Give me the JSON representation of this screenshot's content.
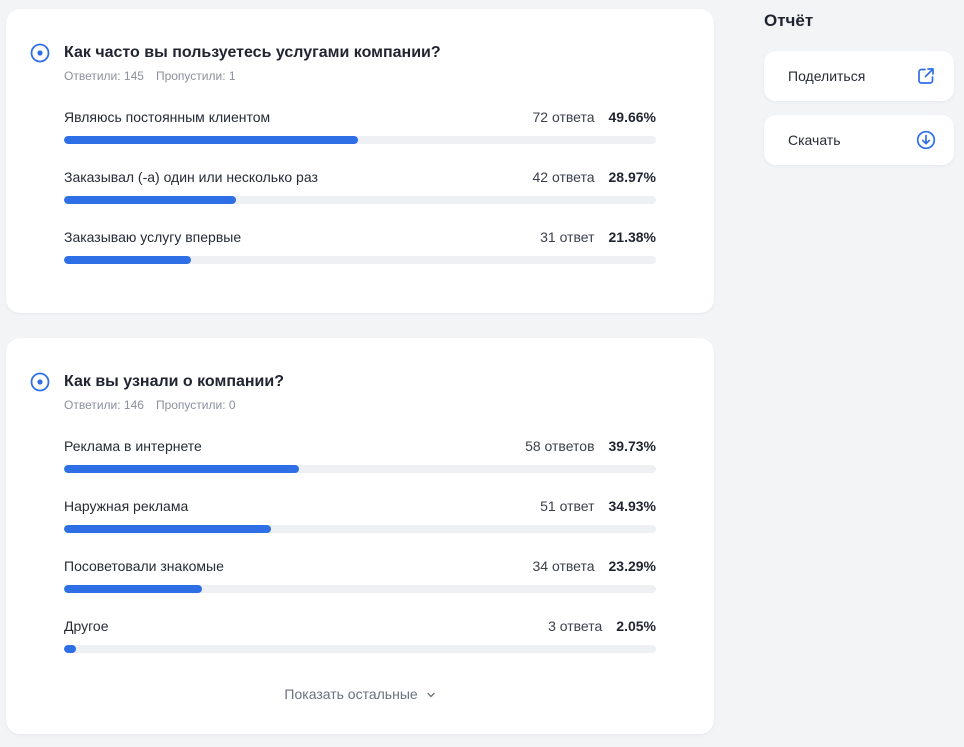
{
  "sidebar": {
    "title": "Отчёт",
    "share_label": "Поделиться",
    "download_label": "Скачать"
  },
  "colors": {
    "accent": "#2f6fe6",
    "track": "#eef0f4"
  },
  "questions": [
    {
      "title": "Как часто вы пользуетесь услугами компании?",
      "answered": "Ответили: 145",
      "skipped": "Пропустили: 1",
      "options": [
        {
          "label": "Являюсь постоянным клиентом",
          "count": "72 ответа",
          "percent": "49.66%",
          "fraction": 0.4966
        },
        {
          "label": "Заказывал (-а) один или несколько раз",
          "count": "42 ответа",
          "percent": "28.97%",
          "fraction": 0.2897
        },
        {
          "label": "Заказываю услугу впервые",
          "count": "31 ответ",
          "percent": "21.38%",
          "fraction": 0.2138
        }
      ]
    },
    {
      "title": "Как вы узнали о компании?",
      "answered": "Ответили: 146",
      "skipped": "Пропустили: 0",
      "options": [
        {
          "label": "Реклама в интернете",
          "count": "58 ответов",
          "percent": "39.73%",
          "fraction": 0.3973
        },
        {
          "label": "Наружная реклама",
          "count": "51 ответ",
          "percent": "34.93%",
          "fraction": 0.3493
        },
        {
          "label": "Посоветовали знакомые",
          "count": "34 ответа",
          "percent": "23.29%",
          "fraction": 0.2329
        },
        {
          "label": "Другое",
          "count": "3 ответа",
          "percent": "2.05%",
          "fraction": 0.0205
        }
      ],
      "show_more_label": "Показать остальные"
    }
  ],
  "icons": {
    "question": "radio-target-icon",
    "share": "external-link-icon",
    "download": "download-circle-icon",
    "show_more": "chevron-down-icon"
  }
}
